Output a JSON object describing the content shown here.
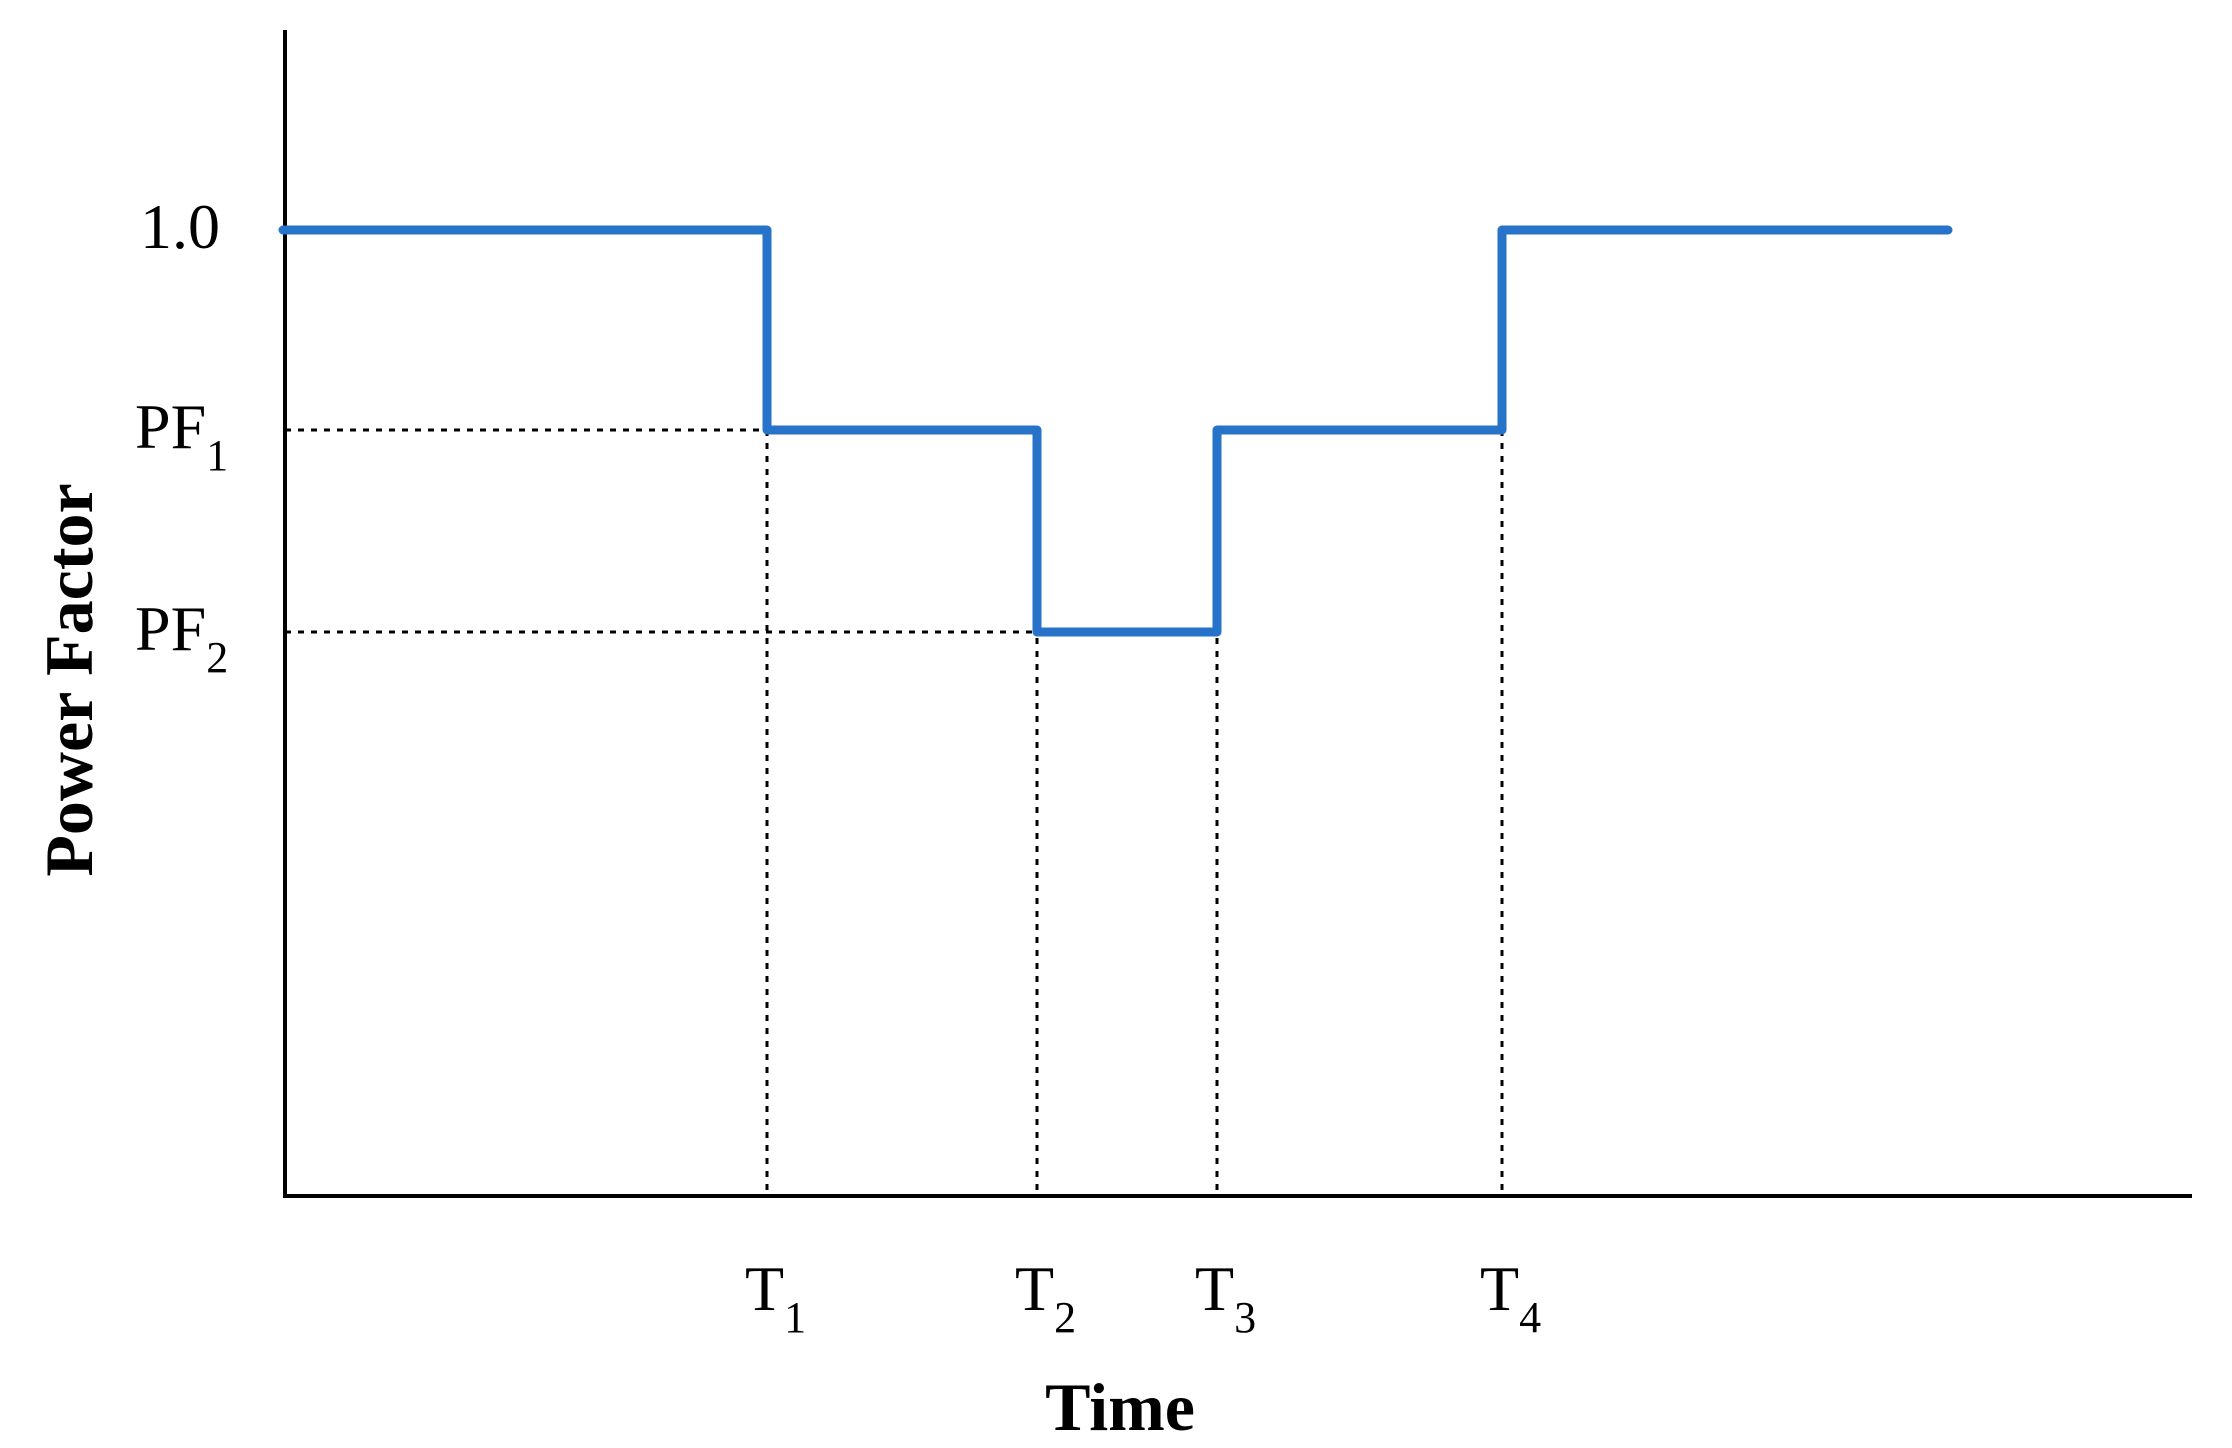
{
  "chart_data": {
    "type": "line",
    "title": "",
    "xlabel": "Time",
    "ylabel": "Power Factor",
    "grid": false,
    "legend": "none",
    "colors": {
      "series": "#2673C9",
      "axes": "#000000",
      "guides": "#000000"
    },
    "x_ticks": [
      {
        "key": "t1",
        "base": "T",
        "sub": "1",
        "x": 1
      },
      {
        "key": "t2",
        "base": "T",
        "sub": "2",
        "x": 2
      },
      {
        "key": "t3",
        "base": "T",
        "sub": "3",
        "x": 3
      },
      {
        "key": "t4",
        "base": "T",
        "sub": "4",
        "x": 4
      }
    ],
    "y_ticks": [
      {
        "key": "one",
        "base": "1.0",
        "sub": "",
        "y": 1.0
      },
      {
        "key": "pf1",
        "base": "PF",
        "sub": "1",
        "y": 0.8
      },
      {
        "key": "pf2",
        "base": "PF",
        "sub": "2",
        "y": 0.6
      }
    ],
    "series": [
      {
        "values": [
          [
            0,
            1.0
          ],
          [
            1,
            1.0
          ],
          [
            1,
            0.8
          ],
          [
            2,
            0.8
          ],
          [
            2,
            0.6
          ],
          [
            3,
            0.6
          ],
          [
            3,
            0.8
          ],
          [
            4,
            0.8
          ],
          [
            4,
            1.0
          ],
          [
            5,
            1.0
          ]
        ]
      }
    ]
  }
}
